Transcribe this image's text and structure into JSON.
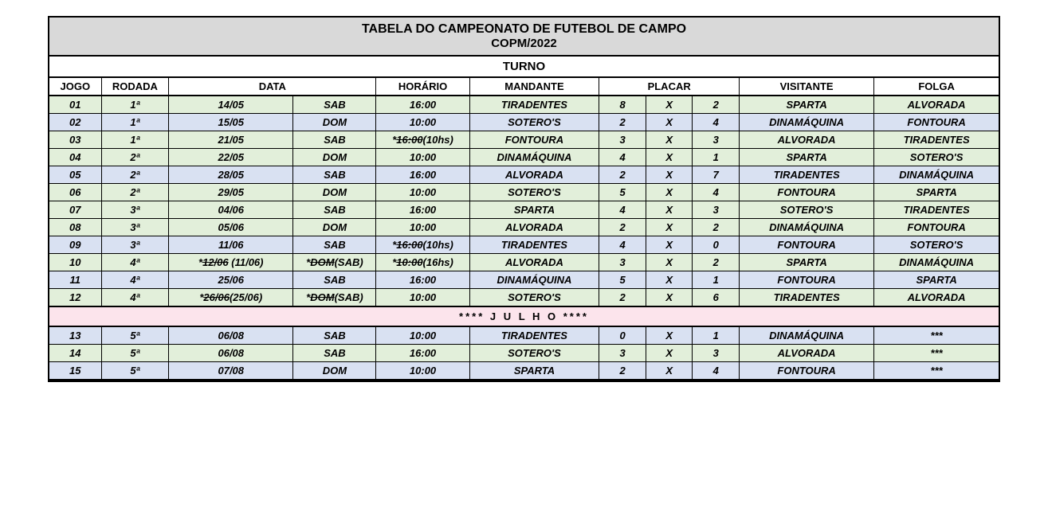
{
  "title_line1": "TABELA DO CAMPEONATO DE FUTEBOL DE CAMPO",
  "title_line2": "COPM/2022",
  "turno_label": "TURNO",
  "headers": {
    "jogo": "JOGO",
    "rodada": "RODADA",
    "data": "DATA",
    "horario": "HORÁRIO",
    "mandante": "MANDANTE",
    "placar": "PLACAR",
    "visitante": "VISITANTE",
    "folga": "FOLGA"
  },
  "month_separator": "**** J U L H O ****",
  "rows": [
    {
      "jogo": "01",
      "rodada": "1ª",
      "data_html": "14/05",
      "dia_html": "SAB",
      "hor_html": "16:00",
      "mandante": "TIRADENTES",
      "s1": "8",
      "x": "X",
      "s2": "2",
      "visitante": "SPARTA",
      "folga": "ALVORADA",
      "color": "green"
    },
    {
      "jogo": "02",
      "rodada": "1ª",
      "data_html": "15/05",
      "dia_html": "DOM",
      "hor_html": "10:00",
      "mandante": "SOTERO'S",
      "s1": "2",
      "x": "X",
      "s2": "4",
      "visitante": "DINAMÁQUINA",
      "folga": "FONTOURA",
      "color": "blue"
    },
    {
      "jogo": "03",
      "rodada": "1ª",
      "data_html": "21/05",
      "dia_html": "SAB",
      "hor_html": "*<span class=\"strike\">16:00</span>(10hs)",
      "mandante": "FONTOURA",
      "s1": "3",
      "x": "X",
      "s2": "3",
      "visitante": "ALVORADA",
      "folga": "TIRADENTES",
      "color": "green"
    },
    {
      "jogo": "04",
      "rodada": "2ª",
      "data_html": "22/05",
      "dia_html": "DOM",
      "hor_html": "10:00",
      "mandante": "DINAMÁQUINA",
      "s1": "4",
      "x": "X",
      "s2": "1",
      "visitante": "SPARTA",
      "folga": "SOTERO'S",
      "color": "green"
    },
    {
      "jogo": "05",
      "rodada": "2ª",
      "data_html": "28/05",
      "dia_html": "SAB",
      "hor_html": "16:00",
      "mandante": "ALVORADA",
      "s1": "2",
      "x": "X",
      "s2": "7",
      "visitante": "TIRADENTES",
      "folga": "DINAMÁQUINA",
      "color": "blue"
    },
    {
      "jogo": "06",
      "rodada": "2ª",
      "data_html": "29/05",
      "dia_html": "DOM",
      "hor_html": "10:00",
      "mandante": "SOTERO'S",
      "s1": "5",
      "x": "X",
      "s2": "4",
      "visitante": "FONTOURA",
      "folga": "SPARTA",
      "color": "green"
    },
    {
      "jogo": "07",
      "rodada": "3ª",
      "data_html": "04/06",
      "dia_html": "SAB",
      "hor_html": "16:00",
      "mandante": "SPARTA",
      "s1": "4",
      "x": "X",
      "s2": "3",
      "visitante": "SOTERO'S",
      "folga": "TIRADENTES",
      "color": "green"
    },
    {
      "jogo": "08",
      "rodada": "3ª",
      "data_html": "05/06",
      "dia_html": "DOM",
      "hor_html": "10:00",
      "mandante": "ALVORADA",
      "s1": "2",
      "x": "X",
      "s2": "2",
      "visitante": "DINAMÁQUINA",
      "folga": "FONTOURA",
      "color": "green"
    },
    {
      "jogo": "09",
      "rodada": "3ª",
      "data_html": "11/06",
      "dia_html": "SAB",
      "hor_html": "*<span class=\"strike\">16:00</span>(10hs)",
      "mandante": "TIRADENTES",
      "s1": "4",
      "x": "X",
      "s2": "0",
      "visitante": "FONTOURA",
      "folga": "SOTERO'S",
      "color": "blue"
    },
    {
      "jogo": "10",
      "rodada": "4ª",
      "data_html": "*<span class=\"strike\">12/06</span> (11/06)",
      "dia_html": "*<span class=\"strike\">DOM</span>(SAB)",
      "hor_html": "*<span class=\"strike\">10:00</span>(16hs)",
      "mandante": "ALVORADA",
      "s1": "3",
      "x": "X",
      "s2": "2",
      "visitante": "SPARTA",
      "folga": "DINAMÁQUINA",
      "color": "green"
    },
    {
      "jogo": "11",
      "rodada": "4ª",
      "data_html": "25/06",
      "dia_html": "SAB",
      "hor_html": "16:00",
      "mandante": "DINAMÁQUINA",
      "s1": "5",
      "x": "X",
      "s2": "1",
      "visitante": "FONTOURA",
      "folga": "SPARTA",
      "color": "blue"
    },
    {
      "jogo": "12",
      "rodada": "4ª",
      "data_html": "*<span class=\"strike\">26/06</span>(25/06)",
      "dia_html": "*<span class=\"strike\">DOM</span>(SAB)",
      "hor_html": "10:00",
      "mandante": "SOTERO'S",
      "s1": "2",
      "x": "X",
      "s2": "6",
      "visitante": "TIRADENTES",
      "folga": "ALVORADA",
      "color": "green"
    },
    {
      "type": "month"
    },
    {
      "jogo": "13",
      "rodada": "5ª",
      "data_html": "06/08",
      "dia_html": "SAB",
      "hor_html": "10:00",
      "mandante": "TIRADENTES",
      "s1": "0",
      "x": "X",
      "s2": "1",
      "visitante": "DINAMÁQUINA",
      "folga": "***",
      "color": "blue"
    },
    {
      "jogo": "14",
      "rodada": "5ª",
      "data_html": "06/08",
      "dia_html": "SAB",
      "hor_html": "16:00",
      "mandante": "SOTERO'S",
      "s1": "3",
      "x": "X",
      "s2": "3",
      "visitante": "ALVORADA",
      "folga": "***",
      "color": "green"
    },
    {
      "jogo": "15",
      "rodada": "5ª",
      "data_html": "07/08",
      "dia_html": "DOM",
      "hor_html": "10:00",
      "mandante": "SPARTA",
      "s1": "2",
      "x": "X",
      "s2": "4",
      "visitante": "FONTOURA",
      "folga": "***",
      "color": "blue"
    }
  ],
  "colors": {
    "header_bg": "#d9d9d9",
    "green_bg": "#e2efda",
    "blue_bg": "#d9e1f2",
    "month_bg": "#fce4ec",
    "border": "#000000"
  }
}
